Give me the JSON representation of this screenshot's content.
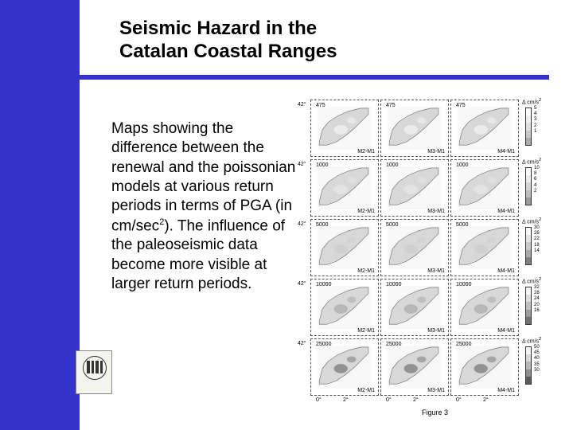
{
  "title_line1": "Seismic Hazard in the",
  "title_line2": "Catalan Coastal Ranges",
  "body": "Maps showing the difference between the renewal and the poissonian models at various return periods in terms of PGA (in cm/sec",
  "body_sup": "2",
  "body_after": "). The influence of the paleoseismic data become more visible at larger return periods.",
  "figure_caption": "Figure 3",
  "colors": {
    "sidebar": "#3333cc",
    "land": "#d8d8d8",
    "sea": "#f8f8f8",
    "outline": "#555555"
  },
  "lat_label": "42°",
  "lon_ticks": [
    "0°",
    "2°"
  ],
  "scale_label_prefix": "Δ cm/s",
  "scale_label_sup": "2",
  "rows": [
    {
      "rp": "475",
      "scale": [
        "5",
        "4",
        "3",
        "2",
        "1"
      ],
      "grad": [
        "#fefefe",
        "#f0f0f0",
        "#e0e0e0",
        "#c8c8c8",
        "#aaaaaa"
      ]
    },
    {
      "rp": "1000",
      "scale": [
        "10",
        "8",
        "6",
        "4",
        "2"
      ],
      "grad": [
        "#fefefe",
        "#ececec",
        "#d6d6d6",
        "#bcbcbc",
        "#9a9a9a"
      ]
    },
    {
      "rp": "5000",
      "scale": [
        "30",
        "26",
        "22",
        "18",
        "14"
      ],
      "grad": [
        "#f8f8f8",
        "#e4e4e4",
        "#cacaca",
        "#a8a8a8",
        "#808080"
      ]
    },
    {
      "rp": "10000",
      "scale": [
        "32",
        "28",
        "24",
        "20",
        "16"
      ],
      "grad": [
        "#f6f6f6",
        "#dedede",
        "#c0c0c0",
        "#9c9c9c",
        "#707070"
      ]
    },
    {
      "rp": "25000",
      "scale": [
        "50",
        "45",
        "40",
        "35",
        "30"
      ],
      "grad": [
        "#f4f4f4",
        "#d8d8d8",
        "#b6b6b6",
        "#8e8e8e",
        "#5a5a5a"
      ]
    }
  ],
  "col_labels": [
    "M2-M1",
    "M3-M1",
    "M4-M1"
  ]
}
